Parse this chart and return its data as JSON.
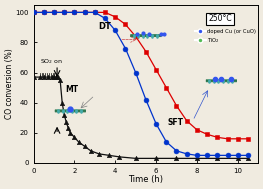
{
  "xlabel": "Time (h)",
  "ylabel": "CO conversion (%)",
  "xlim": [
    0,
    11
  ],
  "ylim": [
    0,
    105
  ],
  "yticks": [
    0,
    20,
    40,
    60,
    80,
    100
  ],
  "xticks": [
    0,
    2,
    4,
    6,
    8,
    10
  ],
  "bg_color": "#f0ebe0",
  "plot_bg": "#f0ebe0",
  "annotation_so2": "SO$_2$ on",
  "annotation_DT": "DT",
  "annotation_MT": "MT",
  "annotation_SFT": "SFT",
  "temp_label": "250°C",
  "legend_doped": "doped Cu (or CuO)",
  "legend_tio2": "TiO$_2$",
  "MT": {
    "color": "#111111",
    "marker": "^",
    "x": [
      0,
      0.3,
      0.5,
      0.7,
      0.9,
      1.0,
      1.1,
      1.2,
      1.3,
      1.4,
      1.5,
      1.6,
      1.7,
      1.8,
      2.0,
      2.2,
      2.5,
      2.8,
      3.2,
      3.7,
      4.2,
      5.0,
      6.0,
      7.0,
      8.0,
      9.0,
      10.0,
      10.5
    ],
    "y": [
      57,
      57,
      57,
      57,
      57,
      57,
      57,
      57,
      55,
      40,
      32,
      27,
      23,
      20,
      17,
      14,
      11,
      8,
      6,
      5,
      4,
      3,
      3,
      3,
      3,
      3,
      3,
      3
    ]
  },
  "DT": {
    "color": "#dd0000",
    "marker": "s",
    "x": [
      0,
      0.5,
      1.0,
      1.5,
      2.0,
      2.5,
      3.0,
      3.5,
      4.0,
      4.5,
      5.0,
      5.5,
      6.0,
      6.5,
      7.0,
      7.5,
      8.0,
      8.5,
      9.0,
      9.5,
      10.0,
      10.5
    ],
    "y": [
      100,
      100,
      100,
      100,
      100,
      100,
      100,
      100,
      97,
      92,
      84,
      74,
      62,
      50,
      38,
      28,
      22,
      19,
      17,
      16,
      16,
      16
    ]
  },
  "SFT": {
    "color": "#0033cc",
    "marker": "o",
    "x": [
      0,
      0.5,
      1.0,
      1.5,
      2.0,
      2.5,
      3.0,
      3.5,
      4.0,
      4.5,
      5.0,
      5.5,
      6.0,
      6.5,
      7.0,
      7.5,
      8.0,
      8.5,
      9.0,
      9.5,
      10.0,
      10.5
    ],
    "y": [
      100,
      100,
      100,
      100,
      100,
      100,
      100,
      96,
      88,
      76,
      60,
      42,
      26,
      14,
      8,
      6,
      5,
      5,
      5,
      5,
      5,
      5
    ]
  },
  "tio2_color": "#55bb55",
  "cu_color": "#3355ee",
  "schematic_green": "#44aa66",
  "schematic_blue": "#3355ee",
  "schematic_teal": "#44aaaa"
}
